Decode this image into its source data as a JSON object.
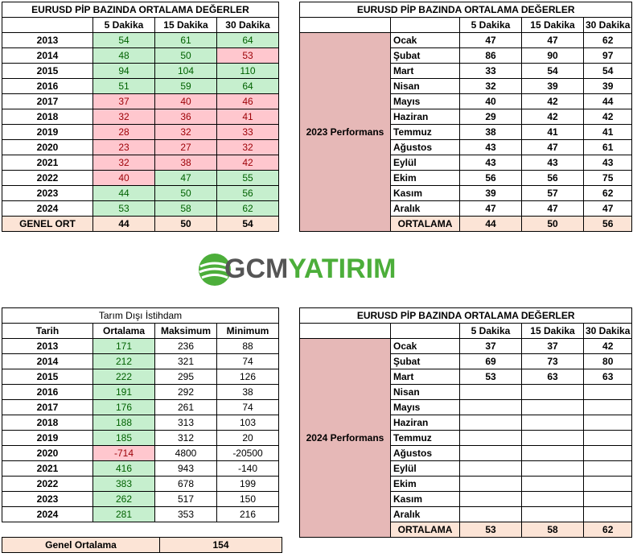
{
  "colors": {
    "positive_fill": "#c6efce",
    "positive_text": "#006100",
    "negative_fill": "#ffc7ce",
    "negative_text": "#9c0006",
    "summary_fill": "#fce4d6",
    "performance_fill": "#e6b8b7",
    "brand_green": "#4cae3a",
    "brand_gray": "#555555"
  },
  "logo": {
    "part1": "GCM",
    "part2": "YATIRIM",
    "icon": "globe-icon"
  },
  "t1": {
    "title": "EURUSD  PİP BAZINDA ORTALAMA DEĞERLER",
    "headers": [
      "",
      "5 Dakika",
      "15 Dakika",
      "30 Dakika"
    ],
    "rows": [
      {
        "year": "2013",
        "v": [
          "54",
          "61",
          "64"
        ],
        "c": [
          "g",
          "g",
          "g"
        ]
      },
      {
        "year": "2014",
        "v": [
          "48",
          "50",
          "53"
        ],
        "c": [
          "g",
          "g",
          "r"
        ]
      },
      {
        "year": "2015",
        "v": [
          "94",
          "104",
          "110"
        ],
        "c": [
          "g",
          "g",
          "g"
        ]
      },
      {
        "year": "2016",
        "v": [
          "51",
          "59",
          "64"
        ],
        "c": [
          "g",
          "g",
          "g"
        ]
      },
      {
        "year": "2017",
        "v": [
          "37",
          "40",
          "46"
        ],
        "c": [
          "r",
          "r",
          "r"
        ]
      },
      {
        "year": "2018",
        "v": [
          "32",
          "36",
          "41"
        ],
        "c": [
          "r",
          "r",
          "r"
        ]
      },
      {
        "year": "2019",
        "v": [
          "28",
          "32",
          "33"
        ],
        "c": [
          "r",
          "r",
          "r"
        ]
      },
      {
        "year": "2020",
        "v": [
          "23",
          "27",
          "32"
        ],
        "c": [
          "r",
          "r",
          "r"
        ]
      },
      {
        "year": "2021",
        "v": [
          "32",
          "38",
          "42"
        ],
        "c": [
          "r",
          "r",
          "r"
        ]
      },
      {
        "year": "2022",
        "v": [
          "40",
          "47",
          "55"
        ],
        "c": [
          "r",
          "g",
          "g"
        ]
      },
      {
        "year": "2023",
        "v": [
          "44",
          "50",
          "56"
        ],
        "c": [
          "g",
          "g",
          "g"
        ]
      },
      {
        "year": "2024",
        "v": [
          "53",
          "58",
          "62"
        ],
        "c": [
          "g",
          "g",
          "g"
        ]
      }
    ],
    "footer": {
      "label": "GENEL ORT",
      "v": [
        "44",
        "50",
        "54"
      ]
    }
  },
  "t2": {
    "title": "EURUSD  PİP BAZINDA ORTALAMA DEĞERLER",
    "headers": [
      "",
      "",
      "5 Dakika",
      "15 Dakika",
      "30 Dakika"
    ],
    "side_label": "2023 Performans",
    "rows": [
      {
        "month": "Ocak",
        "v": [
          "47",
          "47",
          "62"
        ]
      },
      {
        "month": "Şubat",
        "v": [
          "86",
          "90",
          "97"
        ]
      },
      {
        "month": "Mart",
        "v": [
          "33",
          "54",
          "54"
        ]
      },
      {
        "month": "Nisan",
        "v": [
          "32",
          "39",
          "39"
        ]
      },
      {
        "month": "Mayıs",
        "v": [
          "40",
          "42",
          "44"
        ]
      },
      {
        "month": "Haziran",
        "v": [
          "29",
          "42",
          "42"
        ]
      },
      {
        "month": "Temmuz",
        "v": [
          "38",
          "41",
          "41"
        ]
      },
      {
        "month": "Ağustos",
        "v": [
          "43",
          "47",
          "61"
        ]
      },
      {
        "month": "Eylül",
        "v": [
          "43",
          "43",
          "43"
        ]
      },
      {
        "month": "Ekim",
        "v": [
          "56",
          "56",
          "75"
        ]
      },
      {
        "month": "Kasım",
        "v": [
          "39",
          "57",
          "62"
        ]
      },
      {
        "month": "Aralık",
        "v": [
          "47",
          "47",
          "47"
        ]
      }
    ],
    "footer": {
      "label": "ORTALAMA",
      "v": [
        "44",
        "50",
        "56"
      ]
    }
  },
  "t3": {
    "title": "Tarım Dışı İstihdam",
    "headers": [
      "Tarih",
      "Ortalama",
      "Maksimum",
      "Minimum"
    ],
    "rows": [
      {
        "year": "2013",
        "avg": "171",
        "max": "236",
        "min": "88",
        "c": "g"
      },
      {
        "year": "2014",
        "avg": "212",
        "max": "321",
        "min": "74",
        "c": "g"
      },
      {
        "year": "2015",
        "avg": "222",
        "max": "295",
        "min": "126",
        "c": "g"
      },
      {
        "year": "2016",
        "avg": "191",
        "max": "292",
        "min": "38",
        "c": "g"
      },
      {
        "year": "2017",
        "avg": "176",
        "max": "261",
        "min": "74",
        "c": "g"
      },
      {
        "year": "2018",
        "avg": "188",
        "max": "313",
        "min": "103",
        "c": "g"
      },
      {
        "year": "2019",
        "avg": "185",
        "max": "312",
        "min": "20",
        "c": "g"
      },
      {
        "year": "2020",
        "avg": "-714",
        "max": "4800",
        "min": "-20500",
        "c": "r"
      },
      {
        "year": "2021",
        "avg": "416",
        "max": "943",
        "min": "-140",
        "c": "g"
      },
      {
        "year": "2022",
        "avg": "383",
        "max": "678",
        "min": "199",
        "c": "g"
      },
      {
        "year": "2023",
        "avg": "262",
        "max": "517",
        "min": "150",
        "c": "g"
      },
      {
        "year": "2024",
        "avg": "281",
        "max": "353",
        "min": "216",
        "c": "g"
      }
    ],
    "footer": {
      "label": "Genel Ortalama",
      "value": "154"
    }
  },
  "t4": {
    "title": "EURUSD  PİP BAZINDA ORTALAMA DEĞERLER",
    "headers": [
      "",
      "",
      "5 Dakika",
      "15 Dakika",
      "30 Dakika"
    ],
    "side_label": "2024 Performans",
    "rows": [
      {
        "month": "Ocak",
        "v": [
          "37",
          "37",
          "42"
        ]
      },
      {
        "month": "Şubat",
        "v": [
          "69",
          "73",
          "80"
        ]
      },
      {
        "month": "Mart",
        "v": [
          "53",
          "63",
          "63"
        ]
      },
      {
        "month": "Nisan",
        "v": [
          "",
          "",
          ""
        ]
      },
      {
        "month": "Mayıs",
        "v": [
          "",
          "",
          ""
        ]
      },
      {
        "month": "Haziran",
        "v": [
          "",
          "",
          ""
        ]
      },
      {
        "month": "Temmuz",
        "v": [
          "",
          "",
          ""
        ]
      },
      {
        "month": "Ağustos",
        "v": [
          "",
          "",
          ""
        ]
      },
      {
        "month": "Eylül",
        "v": [
          "",
          "",
          ""
        ]
      },
      {
        "month": "Ekim",
        "v": [
          "",
          "",
          ""
        ]
      },
      {
        "month": "Kasım",
        "v": [
          "",
          "",
          ""
        ]
      },
      {
        "month": "Aralık",
        "v": [
          "",
          "",
          ""
        ]
      }
    ],
    "footer": {
      "label": "ORTALAMA",
      "v": [
        "53",
        "58",
        "62"
      ]
    }
  }
}
